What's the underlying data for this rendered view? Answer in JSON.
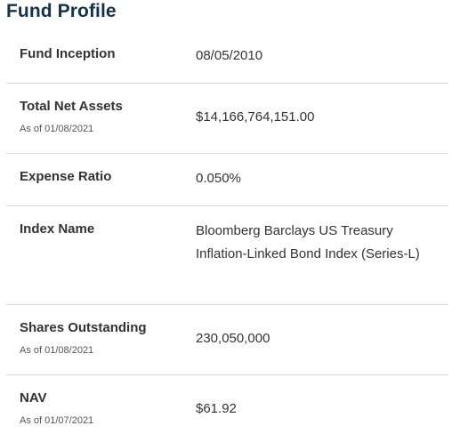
{
  "title": "Fund Profile",
  "rows": [
    {
      "label": "Fund Inception",
      "sublabel": "",
      "value": "08/05/2010"
    },
    {
      "label": "Total Net Assets",
      "sublabel": "As of 01/08/2021",
      "value": "$14,166,764,151.00"
    },
    {
      "label": "Expense Ratio",
      "sublabel": "",
      "value": "0.050%"
    },
    {
      "label": "Index Name",
      "sublabel": "",
      "value": "Bloomberg Barclays US Treasury Inflation-Linked Bond Index (Series-L)"
    },
    {
      "label": "Shares Outstanding",
      "sublabel": "As of 01/08/2021",
      "value": "230,050,000"
    },
    {
      "label": "NAV",
      "sublabel": "As of 01/07/2021",
      "value": "$61.92"
    }
  ]
}
